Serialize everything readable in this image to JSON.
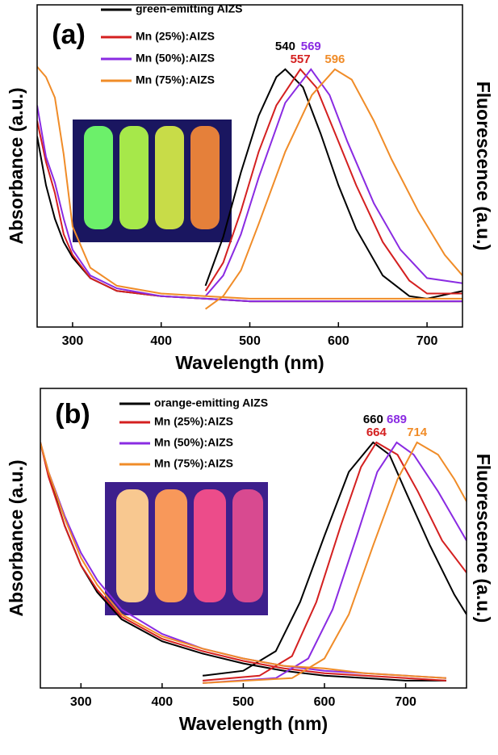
{
  "chart_data": [
    {
      "type": "line",
      "panel_label": "(a)",
      "xlabel": "Wavelength (nm)",
      "ylabel": "Absorbance (a.u.)",
      "y2label": "Fluorescence (a.u.)",
      "xlim": [
        260,
        740
      ],
      "xticks": [
        300,
        400,
        500,
        600,
        700
      ],
      "ylim": [
        0,
        1.25
      ],
      "series": [
        {
          "name": "green-emitting AIZS",
          "color": "#000000",
          "peak": 540,
          "absorbance": {
            "x": [
              260,
              270,
              280,
              290,
              300,
              320,
              350,
              400,
              450,
              500,
              600,
              700,
              740
            ],
            "values": [
              0.74,
              0.55,
              0.42,
              0.33,
              0.27,
              0.19,
              0.14,
              0.12,
              0.11,
              0.1,
              0.1,
              0.1,
              0.1
            ]
          },
          "fluorescence": {
            "x": [
              450,
              470,
              490,
              510,
              530,
              540,
              560,
              580,
              600,
              620,
              650,
              680,
              700,
              740
            ],
            "values": [
              0.16,
              0.35,
              0.6,
              0.82,
              0.97,
              1.0,
              0.93,
              0.75,
              0.55,
              0.38,
              0.2,
              0.12,
              0.11,
              0.14
            ]
          }
        },
        {
          "name": "Mn (25%):AIZS",
          "color": "#d42020",
          "peak": 557,
          "absorbance": {
            "x": [
              260,
              270,
              280,
              290,
              300,
              320,
              350,
              400,
              450,
              500,
              600,
              700,
              740
            ],
            "values": [
              0.8,
              0.64,
              0.52,
              0.36,
              0.28,
              0.19,
              0.14,
              0.12,
              0.11,
              0.1,
              0.1,
              0.1,
              0.1
            ]
          },
          "fluorescence": {
            "x": [
              450,
              470,
              490,
              510,
              530,
              557,
              575,
              600,
              620,
              650,
              680,
              700,
              740
            ],
            "values": [
              0.14,
              0.25,
              0.45,
              0.68,
              0.86,
              1.0,
              0.93,
              0.72,
              0.55,
              0.33,
              0.18,
              0.13,
              0.13
            ]
          }
        },
        {
          "name": "Mn (50%):AIZS",
          "color": "#8a2be2",
          "peak": 569,
          "absorbance": {
            "x": [
              260,
              270,
              280,
              290,
              300,
              320,
              350,
              400,
              450,
              500,
              600,
              700,
              740
            ],
            "values": [
              0.86,
              0.66,
              0.56,
              0.42,
              0.3,
              0.2,
              0.15,
              0.12,
              0.11,
              0.1,
              0.1,
              0.1,
              0.1
            ]
          },
          "fluorescence": {
            "x": [
              450,
              470,
              490,
              510,
              540,
              569,
              590,
              610,
              640,
              670,
              700,
              740
            ],
            "values": [
              0.12,
              0.2,
              0.36,
              0.58,
              0.87,
              1.0,
              0.9,
              0.72,
              0.48,
              0.3,
              0.19,
              0.17
            ]
          }
        },
        {
          "name": "Mn (75%):AIZS",
          "color": "#f08c28",
          "peak": 596,
          "absorbance": {
            "x": [
              260,
              270,
              280,
              290,
              300,
              320,
              350,
              400,
              450,
              500,
              600,
              700,
              740
            ],
            "values": [
              1.01,
              0.97,
              0.89,
              0.67,
              0.39,
              0.23,
              0.16,
              0.13,
              0.12,
              0.11,
              0.11,
              0.11,
              0.11
            ]
          },
          "fluorescence": {
            "x": [
              450,
              470,
              490,
              510,
              540,
              570,
              596,
              615,
              640,
              660,
              690,
              720,
              740
            ],
            "values": [
              0.07,
              0.12,
              0.22,
              0.4,
              0.68,
              0.9,
              1.0,
              0.96,
              0.8,
              0.65,
              0.45,
              0.28,
              0.2
            ]
          }
        }
      ]
    },
    {
      "type": "line",
      "panel_label": "(b)",
      "xlabel": "Wavelength (nm)",
      "ylabel": "Absorbance (a.u.)",
      "y2label": "Fluorescence (a.u.)",
      "xlim": [
        250,
        775
      ],
      "xticks": [
        300,
        400,
        500,
        600,
        700
      ],
      "ylim": [
        0,
        1.22
      ],
      "series": [
        {
          "name": "orange-emitting AIZS",
          "color": "#000000",
          "peak": 660,
          "absorbance": {
            "x": [
              250,
              260,
              280,
              300,
              320,
              350,
              400,
              450,
              500,
              550,
              600,
              650,
              700,
              750
            ],
            "values": [
              1.0,
              0.87,
              0.66,
              0.5,
              0.39,
              0.28,
              0.19,
              0.14,
              0.1,
              0.07,
              0.05,
              0.04,
              0.03,
              0.03
            ]
          },
          "fluorescence": {
            "x": [
              450,
              500,
              540,
              570,
              600,
              630,
              660,
              680,
              700,
              730,
              760,
              775
            ],
            "values": [
              0.05,
              0.07,
              0.15,
              0.35,
              0.62,
              0.88,
              1.0,
              0.95,
              0.8,
              0.58,
              0.38,
              0.3
            ]
          }
        },
        {
          "name": "Mn (25%):AIZS",
          "color": "#d42020",
          "peak": 664,
          "absorbance": {
            "x": [
              250,
              260,
              280,
              300,
              320,
              350,
              400,
              450,
              500,
              550,
              600,
              650,
              700,
              750
            ],
            "values": [
              1.0,
              0.86,
              0.66,
              0.5,
              0.4,
              0.29,
              0.2,
              0.15,
              0.11,
              0.08,
              0.06,
              0.05,
              0.04,
              0.03
            ]
          },
          "fluorescence": {
            "x": [
              450,
              520,
              560,
              590,
              620,
              645,
              664,
              690,
              715,
              745,
              775
            ],
            "values": [
              0.03,
              0.05,
              0.13,
              0.35,
              0.66,
              0.9,
              1.0,
              0.95,
              0.8,
              0.6,
              0.47
            ]
          }
        },
        {
          "name": "Mn (50%):AIZS",
          "color": "#8a2be2",
          "peak": 689,
          "absorbance": {
            "x": [
              250,
              260,
              280,
              300,
              320,
              350,
              400,
              450,
              500,
              550,
              600,
              650,
              700,
              750
            ],
            "values": [
              1.0,
              0.88,
              0.7,
              0.55,
              0.44,
              0.32,
              0.22,
              0.16,
              0.12,
              0.09,
              0.07,
              0.06,
              0.05,
              0.04
            ]
          },
          "fluorescence": {
            "x": [
              450,
              540,
              580,
              610,
              640,
              665,
              689,
              710,
              740,
              775
            ],
            "values": [
              0.02,
              0.04,
              0.12,
              0.32,
              0.62,
              0.88,
              1.0,
              0.95,
              0.8,
              0.6
            ]
          }
        },
        {
          "name": "Mn (75%):AIZS",
          "color": "#f08c28",
          "peak": 714,
          "absorbance": {
            "x": [
              250,
              260,
              280,
              300,
              320,
              350,
              400,
              450,
              500,
              550,
              600,
              650,
              700,
              750
            ],
            "values": [
              1.0,
              0.88,
              0.69,
              0.53,
              0.42,
              0.3,
              0.21,
              0.16,
              0.12,
              0.09,
              0.08,
              0.06,
              0.05,
              0.04
            ]
          },
          "fluorescence": {
            "x": [
              450,
              560,
              600,
              630,
              660,
              690,
              714,
              740,
              760,
              775
            ],
            "values": [
              0.02,
              0.04,
              0.12,
              0.3,
              0.58,
              0.85,
              1.0,
              0.95,
              0.85,
              0.76
            ]
          }
        }
      ]
    }
  ]
}
